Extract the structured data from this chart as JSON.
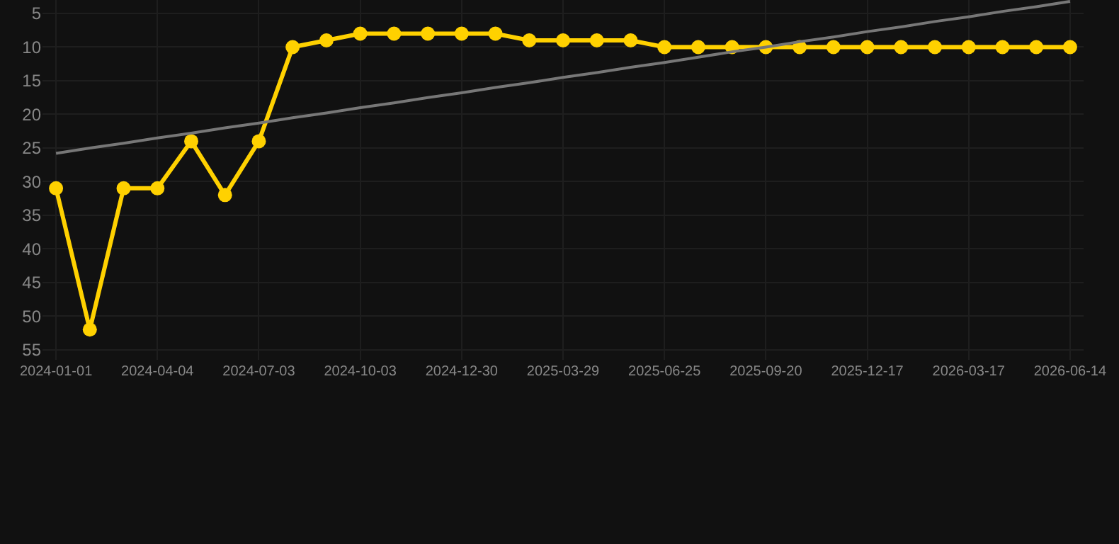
{
  "chart_data": {
    "type": "line",
    "categories": [
      "2024-01-01",
      null,
      null,
      "2024-04-04",
      null,
      null,
      "2024-07-03",
      null,
      null,
      "2024-10-03",
      null,
      null,
      "2024-12-30",
      null,
      null,
      "2025-03-29",
      null,
      null,
      "2025-06-25",
      null,
      null,
      "2025-09-20",
      null,
      null,
      "2025-12-17",
      null,
      null,
      "2026-03-17",
      null,
      null,
      "2026-06-14"
    ],
    "series": [
      {
        "color": "#ffd100",
        "marker": "circle",
        "values": [
          31,
          52,
          31,
          31,
          24,
          32,
          24,
          10,
          9,
          8,
          8,
          8,
          8,
          8,
          9,
          9,
          9,
          9,
          10,
          10,
          10,
          10,
          10,
          10,
          10,
          10,
          10,
          10,
          10,
          10,
          10
        ]
      },
      {
        "type": "line",
        "color": "#777777",
        "marker": "none",
        "values": [
          25.8,
          25.0,
          24.3,
          23.5,
          22.8,
          22.0,
          21.3,
          20.5,
          19.8,
          19.0,
          18.3,
          17.5,
          16.8,
          16.0,
          15.3,
          14.5,
          13.8,
          13.0,
          12.3,
          11.5,
          10.7,
          10.0,
          9.2,
          8.5,
          7.7,
          7.0,
          6.2,
          5.5,
          4.7,
          4.0,
          3.2
        ]
      }
    ],
    "ylim": [
      56.5,
      3
    ],
    "yticks": [
      5,
      10,
      15,
      20,
      25,
      30,
      35,
      40,
      45,
      50,
      55
    ],
    "grid": true
  }
}
